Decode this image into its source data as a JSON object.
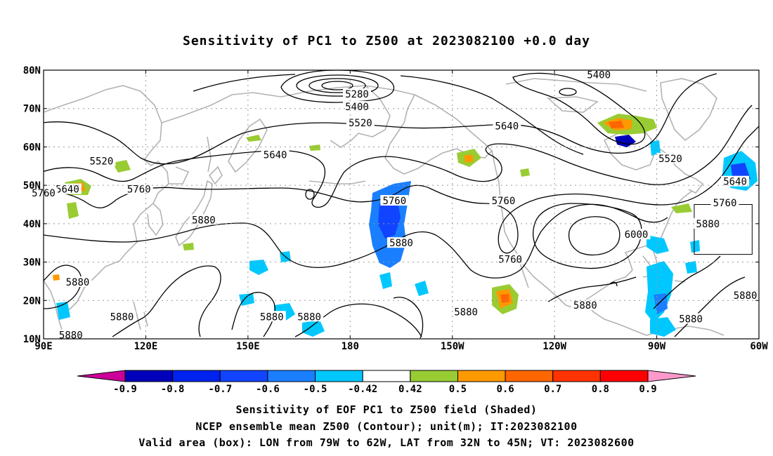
{
  "title": "Sensitivity of PC1 to Z500 at 2023082100 +0.0 day",
  "map": {
    "lon_range": [
      90,
      300
    ],
    "lat_range": [
      10,
      80
    ],
    "lon_ticks": [
      "90E",
      "120E",
      "150E",
      "180",
      "150W",
      "120W",
      "90W",
      "60W"
    ],
    "lat_ticks": [
      "10N",
      "20N",
      "30N",
      "40N",
      "50N",
      "60N",
      "70N",
      "80N"
    ],
    "grid": true,
    "contour_labels": [
      {
        "text": "5280",
        "lon": 182,
        "lat": 73.8
      },
      {
        "text": "5400",
        "lon": 182,
        "lat": 70.5
      },
      {
        "text": "5400",
        "lon": 253,
        "lat": 78.8
      },
      {
        "text": "5520",
        "lon": 183,
        "lat": 66.3
      },
      {
        "text": "5520",
        "lon": 107,
        "lat": 56.3
      },
      {
        "text": "5520",
        "lon": 274,
        "lat": 57.0
      },
      {
        "text": "5640",
        "lon": 97,
        "lat": 49.0
      },
      {
        "text": "5640",
        "lon": 158,
        "lat": 58.0
      },
      {
        "text": "5640",
        "lon": 226,
        "lat": 65.5
      },
      {
        "text": "5640",
        "lon": 293,
        "lat": 51.0
      },
      {
        "text": "5760",
        "lon": 90,
        "lat": 48.0
      },
      {
        "text": "5760",
        "lon": 118,
        "lat": 49.0
      },
      {
        "text": "5760",
        "lon": 193,
        "lat": 46.0
      },
      {
        "text": "5760",
        "lon": 225,
        "lat": 46.0
      },
      {
        "text": "5760",
        "lon": 290,
        "lat": 45.5
      },
      {
        "text": "5760",
        "lon": 227,
        "lat": 30.7
      },
      {
        "text": "5880",
        "lon": 137,
        "lat": 41.0
      },
      {
        "text": "5880",
        "lon": 195,
        "lat": 35.0
      },
      {
        "text": "5880",
        "lon": 285,
        "lat": 40.0
      },
      {
        "text": "5880",
        "lon": 100,
        "lat": 24.8
      },
      {
        "text": "5880",
        "lon": 113,
        "lat": 15.8
      },
      {
        "text": "5880",
        "lon": 98,
        "lat": 11.0
      },
      {
        "text": "5880",
        "lon": 157,
        "lat": 15.8
      },
      {
        "text": "5880",
        "lon": 168,
        "lat": 15.8
      },
      {
        "text": "5880",
        "lon": 214,
        "lat": 17.0
      },
      {
        "text": "5880",
        "lon": 249,
        "lat": 18.8
      },
      {
        "text": "5880",
        "lon": 280,
        "lat": 15.2
      },
      {
        "text": "5880",
        "lon": 296,
        "lat": 21.3
      },
      {
        "text": "6000",
        "lon": 264,
        "lat": 37.2
      }
    ],
    "valid_box": {
      "lon_min": 281,
      "lon_max": 298,
      "lat_min": 32,
      "lat_max": 45
    }
  },
  "colorbar": {
    "labels": [
      "-0.9",
      "-0.8",
      "-0.7",
      "-0.6",
      "-0.5",
      "-0.42",
      "0.42",
      "0.5",
      "0.6",
      "0.7",
      "0.8",
      "0.9"
    ],
    "colors": [
      "#0000bb",
      "#0022ee",
      "#1144ff",
      "#1a7fff",
      "#00c8ff",
      "#ffffff",
      "#99cc33",
      "#ff9900",
      "#ff6600",
      "#ff3300",
      "#ff0000"
    ],
    "low_extend_color": "#cc0099",
    "high_extend_color": "#ff99cc"
  },
  "caption": {
    "line1": "Sensitivity of EOF PC1 to Z500 field (Shaded)",
    "line2": "NCEP ensemble mean Z500 (Contour); unit(m); IT:2023082100",
    "line3": "Valid area (box): LON from 79W to 62W, LAT from 32N to 45N; VT: 2023082600"
  }
}
